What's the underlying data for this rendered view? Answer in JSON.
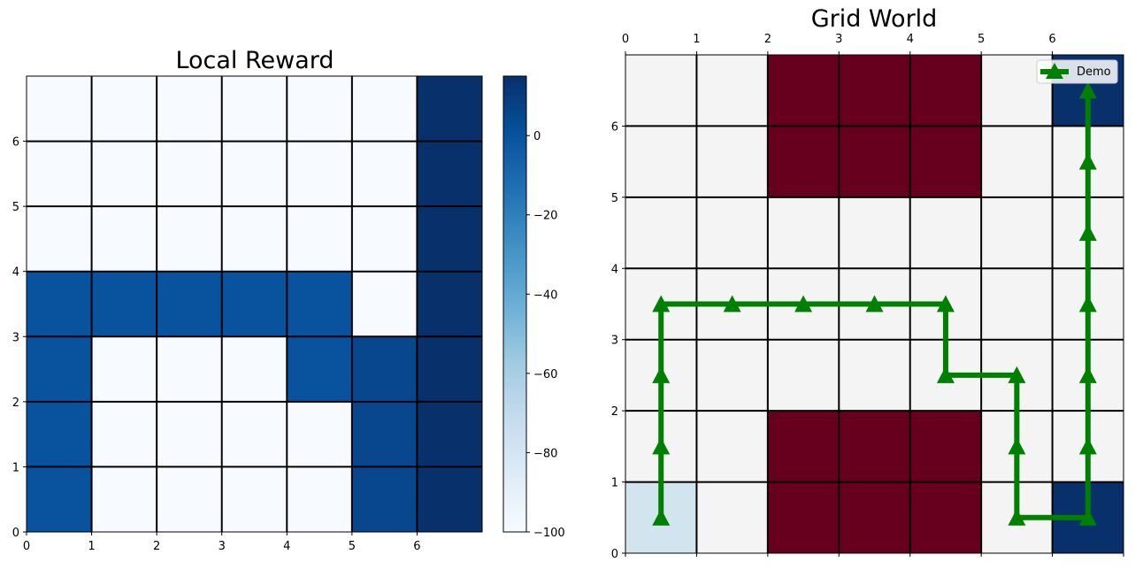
{
  "chart_data": [
    {
      "type": "heatmap",
      "title": "Local Reward",
      "xlabel": "",
      "ylabel": "",
      "grid": true,
      "xlim": [
        0,
        7
      ],
      "ylim": [
        0,
        7
      ],
      "x_ticks": [
        "0",
        "1",
        "2",
        "3",
        "4",
        "5",
        "6"
      ],
      "y_ticks": [
        "0",
        "1",
        "2",
        "3",
        "4",
        "5",
        "6"
      ],
      "colormap": "Blues",
      "colorbar": {
        "range": [
          -100,
          15
        ],
        "ticks": [
          -100,
          -80,
          -60,
          -40,
          -20,
          0
        ],
        "tick_labels": [
          "−100",
          "−80",
          "−60",
          "−40",
          "−20",
          "0"
        ]
      },
      "cells_top_to_bottom": [
        [
          -100,
          -100,
          -100,
          -100,
          -100,
          -100,
          15
        ],
        [
          -100,
          -100,
          -100,
          -100,
          -100,
          -100,
          15
        ],
        [
          -100,
          -100,
          -100,
          -100,
          -100,
          -100,
          15
        ],
        [
          0,
          0,
          0,
          0,
          0,
          -100,
          15
        ],
        [
          0,
          -100,
          -100,
          -100,
          0,
          5,
          15
        ],
        [
          0,
          -100,
          -100,
          -100,
          -100,
          5,
          15
        ],
        [
          0,
          -100,
          -100,
          -100,
          -100,
          5,
          15
        ]
      ]
    },
    {
      "type": "heatmap",
      "title": "Grid World",
      "xlabel": "",
      "ylabel": "",
      "grid": true,
      "xlim": [
        0,
        7
      ],
      "ylim": [
        0,
        7
      ],
      "x_ticks": [
        "0",
        "1",
        "2",
        "3",
        "4",
        "5",
        "6"
      ],
      "y_ticks": [
        "0",
        "1",
        "2",
        "3",
        "4",
        "5",
        "6"
      ],
      "x_ticks_position": "top",
      "cell_colors": {
        "empty": "#f4f4f4",
        "wall": "#67001f",
        "goal": "#08306b",
        "start": "#d2e5ef"
      },
      "cells_top_to_bottom": [
        [
          "empty",
          "empty",
          "wall",
          "wall",
          "wall",
          "empty",
          "goal"
        ],
        [
          "empty",
          "empty",
          "wall",
          "wall",
          "wall",
          "empty",
          "empty"
        ],
        [
          "empty",
          "empty",
          "empty",
          "empty",
          "empty",
          "empty",
          "empty"
        ],
        [
          "empty",
          "empty",
          "empty",
          "empty",
          "empty",
          "empty",
          "empty"
        ],
        [
          "empty",
          "empty",
          "empty",
          "empty",
          "empty",
          "empty",
          "empty"
        ],
        [
          "empty",
          "empty",
          "wall",
          "wall",
          "wall",
          "empty",
          "empty"
        ],
        [
          "start",
          "empty",
          "wall",
          "wall",
          "wall",
          "empty",
          "goal"
        ]
      ],
      "series": [
        {
          "name": "Demo",
          "color": "#008000",
          "marker": "triangle-up",
          "x": [
            0.5,
            0.5,
            0.5,
            0.5,
            1.5,
            2.5,
            3.5,
            4.5,
            4.5,
            5.5,
            5.5,
            5.5,
            6.5,
            6.5,
            6.5,
            6.5,
            6.5,
            6.5,
            6.5
          ],
          "y": [
            0.5,
            1.5,
            2.5,
            3.5,
            3.5,
            3.5,
            3.5,
            3.5,
            2.5,
            2.5,
            1.5,
            0.5,
            0.5,
            1.5,
            2.5,
            3.5,
            4.5,
            5.5,
            6.5
          ]
        }
      ],
      "legend": {
        "placement": "top-right",
        "entries": [
          "Demo"
        ]
      }
    }
  ]
}
